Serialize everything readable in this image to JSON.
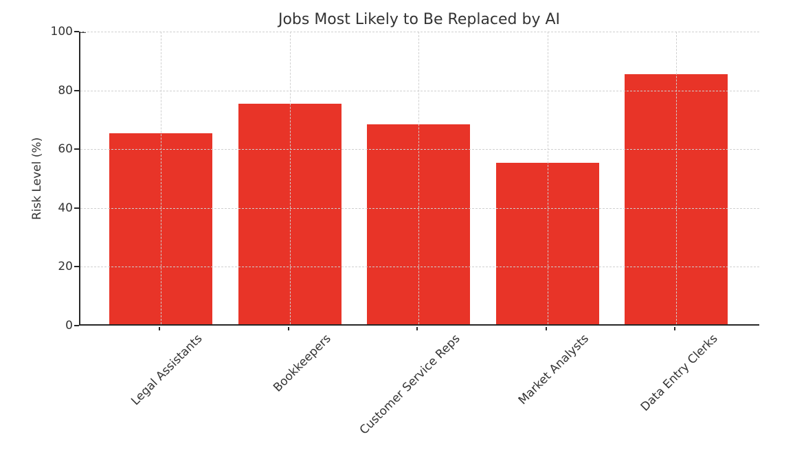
{
  "chart_data": {
    "type": "bar",
    "title": "Jobs Most Likely to Be Replaced by AI",
    "categories": [
      "Legal Assistants",
      "Bookkeepers",
      "Customer Service Reps",
      "Market Analysts",
      "Data Entry Clerks"
    ],
    "values": [
      65,
      75,
      68,
      55,
      85
    ],
    "xlabel": "",
    "ylabel": "Risk Level (%)",
    "ylim": [
      0,
      100
    ],
    "yticks": [
      0,
      20,
      40,
      60,
      80,
      100
    ],
    "bar_color": "#e83428",
    "grid_color": "#cfcfcf",
    "grid": true,
    "grid_style": "dashed",
    "grid_above_bars": true,
    "legend": "none"
  }
}
